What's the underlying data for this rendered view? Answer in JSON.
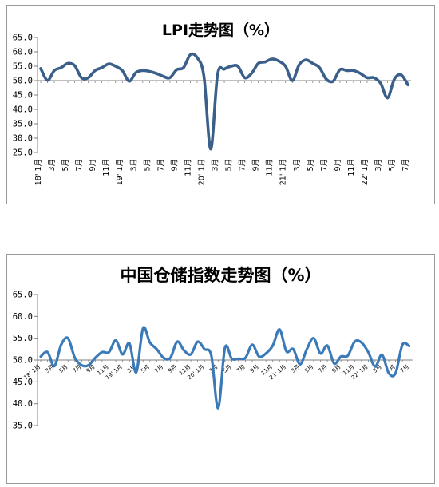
{
  "chart_data": [
    {
      "type": "line",
      "title": "LPI走势图（%）",
      "ylim": [
        25,
        65
      ],
      "yticks": [
        "65.0",
        "60.0",
        "55.0",
        "50.0",
        "45.0",
        "40.0",
        "35.0",
        "30.0",
        "25.0"
      ],
      "reference_line": 50,
      "xtick_labels": [
        "18' 1月",
        "3月",
        "5月",
        "7月",
        "9月",
        "11月",
        "19' 1月",
        "3月",
        "5月",
        "7月",
        "9月",
        "11月",
        "20' 1月",
        "3月",
        "5月",
        "7月",
        "9月",
        "11月",
        "21' 1月",
        "3月",
        "5月",
        "7月",
        "9月",
        "11月",
        "22' 1月",
        "3月",
        "5月",
        "7月"
      ],
      "series": [
        {
          "color": "#3a5f8a",
          "x": [
            "2018-01",
            "2018-02",
            "2018-03",
            "2018-04",
            "2018-05",
            "2018-06",
            "2018-07",
            "2018-08",
            "2018-09",
            "2018-10",
            "2018-11",
            "2018-12",
            "2019-01",
            "2019-02",
            "2019-03",
            "2019-04",
            "2019-05",
            "2019-06",
            "2019-07",
            "2019-08",
            "2019-09",
            "2019-10",
            "2019-11",
            "2019-12",
            "2020-01",
            "2020-02",
            "2020-03",
            "2020-04",
            "2020-05",
            "2020-06",
            "2020-07",
            "2020-08",
            "2020-09",
            "2020-10",
            "2020-11",
            "2020-12",
            "2021-01",
            "2021-02",
            "2021-03",
            "2021-04",
            "2021-05",
            "2021-06",
            "2021-07",
            "2021-08",
            "2021-09",
            "2021-10",
            "2021-11",
            "2021-12",
            "2022-01",
            "2022-02",
            "2022-03",
            "2022-04",
            "2022-05",
            "2022-06",
            "2022-07"
          ],
          "values": [
            54.2,
            50.1,
            53.5,
            54.5,
            56.0,
            55.2,
            51.0,
            51.0,
            53.5,
            54.5,
            55.8,
            55.0,
            53.5,
            49.8,
            52.8,
            53.5,
            53.2,
            52.5,
            51.5,
            51.0,
            53.8,
            54.5,
            59.0,
            58.0,
            51.5,
            26.2,
            52.0,
            54.0,
            55.0,
            55.0,
            51.0,
            52.5,
            56.0,
            56.5,
            57.5,
            56.8,
            55.0,
            50.0,
            55.5,
            57.2,
            56.0,
            54.5,
            50.5,
            49.8,
            53.8,
            53.5,
            53.5,
            52.5,
            51.0,
            51.0,
            49.0,
            44.0,
            50.5,
            52.0,
            48.5
          ]
        }
      ]
    },
    {
      "type": "line",
      "title": "中国仓储指数走势图（%）",
      "ylim": [
        35,
        65
      ],
      "yticks": [
        "65.0",
        "60.0",
        "55.0",
        "50.0",
        "45.0",
        "40.0",
        "35.0"
      ],
      "reference_line": 50,
      "xtick_labels": [
        "18' 1月",
        "3月",
        "5月",
        "7月",
        "9月",
        "11月",
        "19' 1月",
        "3月",
        "5月",
        "7月",
        "9月",
        "11月",
        "20' 1月",
        "3月",
        "5月",
        "7月",
        "9月",
        "11月",
        "21' 1月",
        "3月",
        "5月",
        "7月",
        "9月",
        "11月",
        "22' 1月",
        "3月",
        "5月",
        "7月"
      ],
      "series": [
        {
          "color": "#3a7ab8",
          "x": [
            "2018-01",
            "2018-02",
            "2018-03",
            "2018-04",
            "2018-05",
            "2018-06",
            "2018-07",
            "2018-08",
            "2018-09",
            "2018-10",
            "2018-11",
            "2018-12",
            "2019-01",
            "2019-02",
            "2019-03",
            "2019-04",
            "2019-05",
            "2019-06",
            "2019-07",
            "2019-08",
            "2019-09",
            "2019-10",
            "2019-11",
            "2019-12",
            "2020-01",
            "2020-02",
            "2020-03",
            "2020-04",
            "2020-05",
            "2020-06",
            "2020-07",
            "2020-08",
            "2020-09",
            "2020-10",
            "2020-11",
            "2020-12",
            "2021-01",
            "2021-02",
            "2021-03",
            "2021-04",
            "2021-05",
            "2021-06",
            "2021-07",
            "2021-08",
            "2021-09",
            "2021-10",
            "2021-11",
            "2021-12",
            "2022-01",
            "2022-02",
            "2022-03",
            "2022-04",
            "2022-05",
            "2022-06",
            "2022-07"
          ],
          "values": [
            50.8,
            51.8,
            48.6,
            53.5,
            55.0,
            50.5,
            48.8,
            48.8,
            50.5,
            51.8,
            51.8,
            54.5,
            51.3,
            53.8,
            47.2,
            57.3,
            54.0,
            52.5,
            50.5,
            50.5,
            54.2,
            52.2,
            51.3,
            54.2,
            52.5,
            51.0,
            39.0,
            52.8,
            50.3,
            50.3,
            50.5,
            53.5,
            50.8,
            51.5,
            53.3,
            57.0,
            52.0,
            52.5,
            49.0,
            52.5,
            55.0,
            51.5,
            53.3,
            49.2,
            50.8,
            51.0,
            54.2,
            54.0,
            51.8,
            48.5,
            51.2,
            47.0,
            47.0,
            53.5,
            53.2
          ]
        }
      ]
    }
  ]
}
